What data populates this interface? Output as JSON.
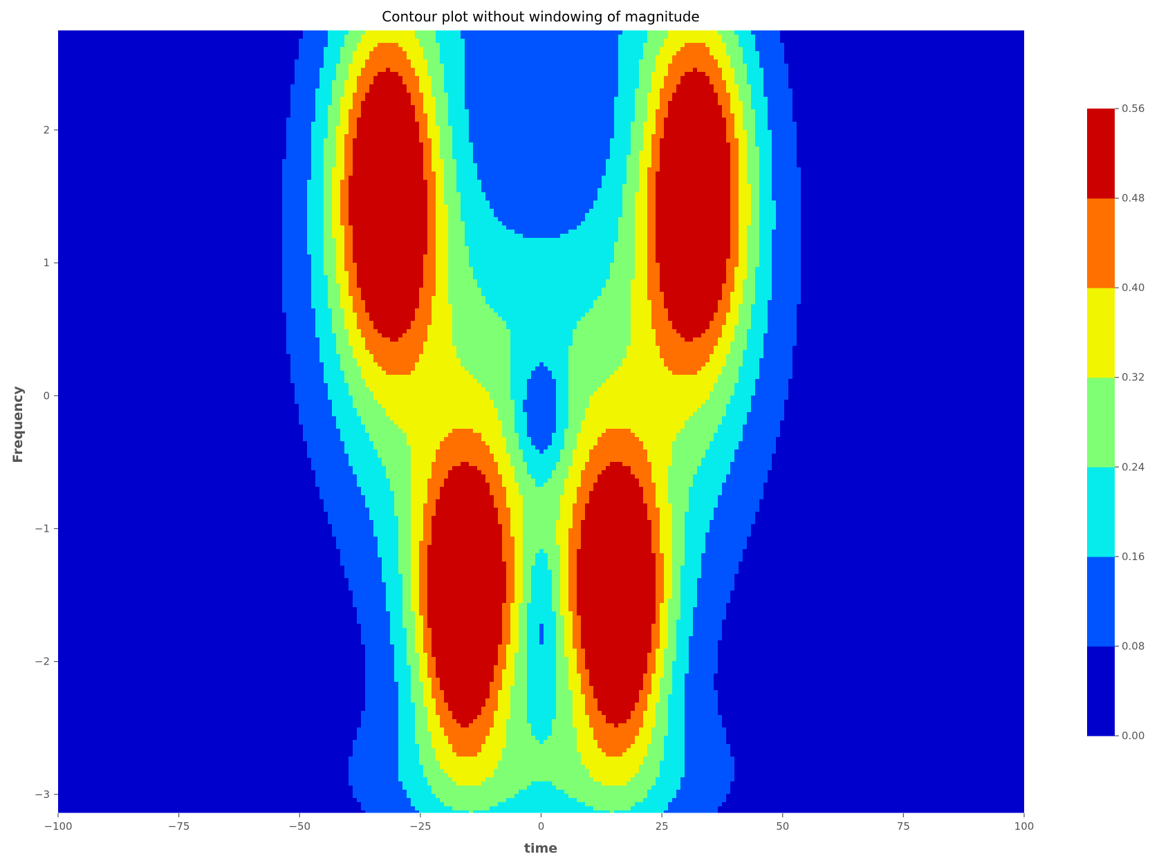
{
  "chart_data": {
    "type": "contour",
    "title": "Contour plot without windowing of magnitude",
    "xlabel": "time",
    "ylabel": "Frequency",
    "xlim": [
      -100,
      100
    ],
    "ylim": [
      -3.1416,
      2.7489
    ],
    "grid": false,
    "colormap": "jet",
    "x_ticks": [
      -100,
      -75,
      -50,
      -25,
      0,
      25,
      50,
      75,
      100
    ],
    "x_tick_labels": [
      "−100",
      "−75",
      "−50",
      "−25",
      "0",
      "25",
      "50",
      "75",
      "100"
    ],
    "y_ticks": [
      -3,
      -2,
      -1,
      0,
      1,
      2
    ],
    "y_tick_labels": [
      "−3",
      "−2",
      "−1",
      "0",
      "1",
      "2"
    ],
    "colorbar": {
      "levels": [
        0.0,
        0.08,
        0.16,
        0.24,
        0.32,
        0.4,
        0.48,
        0.56
      ],
      "level_labels": [
        "0.00",
        "0.08",
        "0.16",
        "0.24",
        "0.32",
        "0.40",
        "0.48",
        "0.56"
      ],
      "colors": [
        "#0000cd",
        "#0054ff",
        "#06ecec",
        "#7fff74",
        "#f1f500",
        "#ff7000",
        "#cd0000"
      ]
    },
    "peaks": [
      {
        "t": -32,
        "f": 1.55,
        "magnitude": 0.52
      },
      {
        "t": 32,
        "f": 1.55,
        "magnitude": 0.52
      },
      {
        "t": -16,
        "f": -1.6,
        "magnitude": 0.54
      },
      {
        "t": 16,
        "f": -1.6,
        "magnitude": 0.54
      }
    ]
  }
}
